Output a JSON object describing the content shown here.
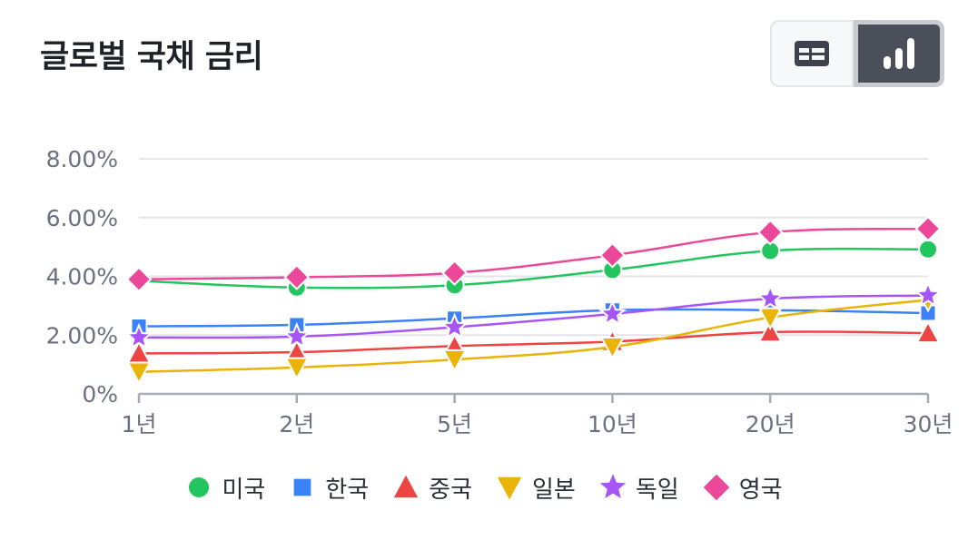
{
  "header": {
    "title": "글로벌 국채 금리",
    "table_view_icon": "table-icon",
    "chart_view_icon": "bar-chart-icon",
    "active_view": "chart"
  },
  "chart_data": {
    "type": "line",
    "title": "글로벌 국채 금리",
    "xlabel": "",
    "ylabel": "",
    "categories": [
      "1년",
      "2년",
      "5년",
      "10년",
      "20년",
      "30년"
    ],
    "ylim": [
      0,
      8
    ],
    "yticks": [
      "0%",
      "2.00%",
      "4.00%",
      "6.00%",
      "8.00%"
    ],
    "ytick_values": [
      0,
      2,
      4,
      6,
      8
    ],
    "grid": true,
    "legend_position": "bottom",
    "series": [
      {
        "name": "미국",
        "color": "#22c55e",
        "marker": "circle",
        "values": [
          3.85,
          3.62,
          3.7,
          4.22,
          4.87,
          4.92
        ]
      },
      {
        "name": "한국",
        "color": "#3b82f6",
        "marker": "square",
        "values": [
          2.3,
          2.35,
          2.57,
          2.85,
          2.85,
          2.75
        ]
      },
      {
        "name": "중국",
        "color": "#ef4444",
        "marker": "triangle-up",
        "values": [
          1.38,
          1.42,
          1.63,
          1.78,
          2.1,
          2.07
        ]
      },
      {
        "name": "일본",
        "color": "#eab308",
        "marker": "triangle-down",
        "values": [
          0.75,
          0.9,
          1.17,
          1.6,
          2.6,
          3.2
        ]
      },
      {
        "name": "독일",
        "color": "#a855f7",
        "marker": "star",
        "values": [
          1.92,
          1.95,
          2.27,
          2.72,
          3.24,
          3.35
        ]
      },
      {
        "name": "영국",
        "color": "#ec4899",
        "marker": "diamond",
        "values": [
          3.9,
          3.97,
          4.12,
          4.72,
          5.5,
          5.62
        ]
      }
    ]
  }
}
